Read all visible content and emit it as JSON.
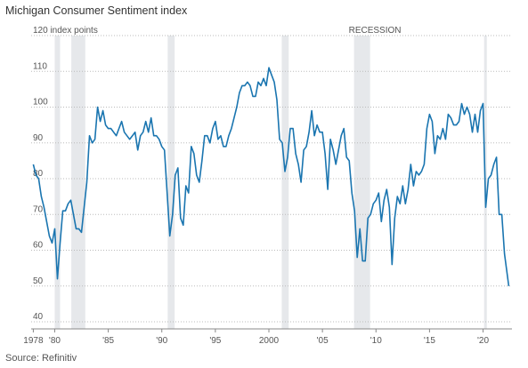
{
  "chart_data": {
    "type": "line",
    "title": "Michigan Consumer Sentiment index",
    "source": "Source: Refinitiv",
    "recession_label": "RECESSION",
    "recessions": [
      [
        1980.0,
        1980.5
      ],
      [
        1981.55,
        1982.85
      ],
      [
        1990.55,
        1991.2
      ],
      [
        2001.2,
        2001.85
      ],
      [
        2007.95,
        2009.45
      ],
      [
        2020.1,
        2020.35
      ]
    ],
    "recession_color": "#e6e8eb",
    "x": [
      1978,
      1978.25,
      1978.5,
      1978.75,
      1979,
      1979.25,
      1979.5,
      1979.75,
      1980,
      1980.25,
      1980.5,
      1980.75,
      1981,
      1981.25,
      1981.5,
      1981.75,
      1982,
      1982.25,
      1982.5,
      1982.75,
      1983,
      1983.25,
      1983.5,
      1983.75,
      1984,
      1984.25,
      1984.5,
      1984.75,
      1985,
      1985.25,
      1985.5,
      1985.75,
      1986,
      1986.25,
      1986.5,
      1986.75,
      1987,
      1987.25,
      1987.5,
      1987.75,
      1988,
      1988.25,
      1988.5,
      1988.75,
      1989,
      1989.25,
      1989.5,
      1989.75,
      1990,
      1990.25,
      1990.5,
      1990.75,
      1991,
      1991.25,
      1991.5,
      1991.75,
      1992,
      1992.25,
      1992.5,
      1992.75,
      1993,
      1993.25,
      1993.5,
      1993.75,
      1994,
      1994.25,
      1994.5,
      1994.75,
      1995,
      1995.25,
      1995.5,
      1995.75,
      1996,
      1996.25,
      1996.5,
      1996.75,
      1997,
      1997.25,
      1997.5,
      1997.75,
      1998,
      1998.25,
      1998.5,
      1998.75,
      1999,
      1999.25,
      1999.5,
      1999.75,
      2000,
      2000.25,
      2000.5,
      2000.75,
      2001,
      2001.25,
      2001.5,
      2001.75,
      2002,
      2002.25,
      2002.5,
      2002.75,
      2003,
      2003.25,
      2003.5,
      2003.75,
      2004,
      2004.25,
      2004.5,
      2004.75,
      2005,
      2005.25,
      2005.5,
      2005.75,
      2006,
      2006.25,
      2006.5,
      2006.75,
      2007,
      2007.25,
      2007.5,
      2007.75,
      2008,
      2008.25,
      2008.5,
      2008.75,
      2009,
      2009.25,
      2009.5,
      2009.75,
      2010,
      2010.25,
      2010.5,
      2010.75,
      2011,
      2011.25,
      2011.5,
      2011.75,
      2012,
      2012.25,
      2012.5,
      2012.75,
      2013,
      2013.25,
      2013.5,
      2013.75,
      2014,
      2014.25,
      2014.5,
      2014.75,
      2015,
      2015.25,
      2015.5,
      2015.75,
      2016,
      2016.25,
      2016.5,
      2016.75,
      2017,
      2017.25,
      2017.5,
      2017.75,
      2018,
      2018.25,
      2018.5,
      2018.75,
      2019,
      2019.25,
      2019.5,
      2019.75,
      2020,
      2020.25,
      2020.5,
      2020.75,
      2021,
      2021.25,
      2021.5,
      2021.75,
      2022,
      2022.4
    ],
    "series": [
      {
        "name": "Michigan Consumer Sentiment index",
        "color": "#1a75b0",
        "values": [
          84,
          81,
          80,
          75,
          72,
          68,
          64,
          62,
          66,
          52,
          62,
          71,
          71,
          73,
          74,
          70,
          66,
          66,
          65,
          72,
          79,
          92,
          90,
          91,
          100,
          96,
          99,
          95,
          94,
          94,
          93,
          92,
          94,
          96,
          93,
          92,
          91,
          92,
          93,
          88,
          92,
          93,
          96,
          93,
          97,
          92,
          92,
          91,
          89,
          88,
          76,
          64,
          70,
          81,
          83,
          69,
          67,
          78,
          76,
          89,
          87,
          81,
          79,
          85,
          92,
          92,
          90,
          94,
          96,
          91,
          92,
          89,
          89,
          92,
          94,
          97,
          100,
          104,
          106,
          106,
          107,
          106,
          103,
          103,
          107,
          106,
          108,
          106,
          111,
          109,
          107,
          102,
          91,
          90,
          82,
          86,
          94,
          94,
          87,
          84,
          79,
          88,
          89,
          93,
          99,
          92,
          95,
          93,
          93,
          87,
          77,
          91,
          88,
          84,
          88,
          92,
          94,
          86,
          85,
          76,
          71,
          58,
          66,
          57,
          57,
          69,
          70,
          73,
          74,
          76,
          68,
          74,
          77,
          72,
          56,
          69,
          75,
          73,
          78,
          73,
          77,
          84,
          78,
          82,
          81,
          82,
          84,
          94,
          98,
          96,
          87,
          92,
          91,
          94,
          91,
          98,
          97,
          95,
          95,
          96,
          101,
          98,
          100,
          98,
          93,
          98,
          93,
          99,
          101,
          72,
          80,
          81,
          84,
          86,
          70,
          70,
          59,
          50
        ]
      }
    ],
    "xlim": [
      1977.8,
      2022.7
    ],
    "ylim": [
      40,
      120
    ],
    "xticks": [
      1978,
      {
        "value": 1980,
        "label": "'80"
      },
      {
        "value": 1985,
        "label": "'85"
      },
      {
        "value": 1990,
        "label": "'90"
      },
      {
        "value": 1995,
        "label": "'95"
      },
      2000,
      {
        "value": 2005,
        "label": "'05"
      },
      {
        "value": 2010,
        "label": "'10"
      },
      {
        "value": 2015,
        "label": "'15"
      },
      {
        "value": 2020,
        "label": "'20"
      }
    ],
    "yticks": [
      40,
      50,
      60,
      70,
      80,
      90,
      100,
      110,
      {
        "value": 120,
        "label": "120 index points"
      }
    ],
    "grid": true
  }
}
